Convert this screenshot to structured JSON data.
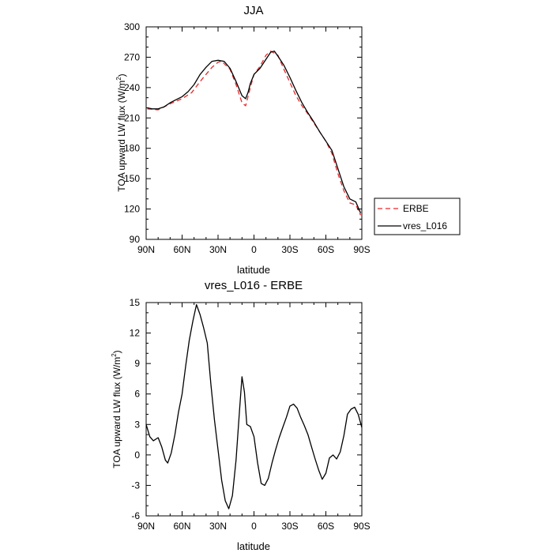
{
  "chart_data": [
    {
      "type": "line",
      "title": "JJA",
      "xlabel": "latitude",
      "ylabel_main": "TOA upward LW flux (W/m",
      "ylabel_sup": "2",
      "ylabel_tail": ")",
      "xlim": [
        90,
        -90
      ],
      "ylim": [
        90,
        300
      ],
      "x_ticks": [
        {
          "value": 90,
          "label": "90N"
        },
        {
          "value": 60,
          "label": "60N"
        },
        {
          "value": 30,
          "label": "30N"
        },
        {
          "value": 0,
          "label": "0"
        },
        {
          "value": -30,
          "label": "30S"
        },
        {
          "value": -60,
          "label": "60S"
        },
        {
          "value": -90,
          "label": "90S"
        }
      ],
      "y_ticks": [
        90,
        120,
        150,
        180,
        210,
        240,
        270,
        300
      ],
      "legend_position": "right",
      "series": [
        {
          "name": "ERBE",
          "color": "#e8282b",
          "dashed": true,
          "x": [
            89,
            80,
            70,
            60,
            52,
            45,
            40,
            35,
            30,
            27,
            20,
            15,
            10,
            7,
            3,
            0,
            -5,
            -10,
            -14,
            -20,
            -25,
            -30,
            -35,
            -40,
            -45,
            -50,
            -55,
            -60,
            -65,
            -70,
            -75,
            -80,
            -85,
            -89
          ],
          "y": [
            219,
            218,
            224,
            229,
            235,
            246,
            253,
            260,
            265,
            266,
            258,
            243,
            225,
            222,
            240,
            253,
            261,
            272,
            276,
            272,
            258,
            245,
            232,
            222,
            214,
            205,
            196,
            187,
            175,
            155,
            138,
            126,
            124,
            114
          ]
        },
        {
          "name": "vres_L016",
          "color": "#000000",
          "dashed": false,
          "x": [
            89,
            85,
            80,
            75,
            70,
            65,
            60,
            55,
            50,
            45,
            40,
            35,
            30,
            25,
            20,
            15,
            10,
            7,
            5,
            3,
            0,
            -5,
            -10,
            -14,
            -17,
            -20,
            -25,
            -30,
            -35,
            -40,
            -45,
            -50,
            -55,
            -60,
            -65,
            -70,
            -75,
            -80,
            -85,
            -89
          ],
          "y": [
            220,
            219,
            219,
            221,
            225,
            228,
            231,
            236,
            243,
            253,
            260,
            266,
            267,
            266,
            259,
            246,
            232,
            229,
            235,
            244,
            253,
            259,
            268,
            275,
            276,
            271,
            262,
            250,
            237,
            225,
            215,
            206,
            196,
            187,
            178,
            160,
            142,
            130,
            127,
            116
          ]
        }
      ]
    },
    {
      "type": "line",
      "title": "vres_L016 - ERBE",
      "xlabel": "latitude",
      "ylabel_main": "TOA upward LW flux (W/m",
      "ylabel_sup": "2",
      "ylabel_tail": ")",
      "xlim": [
        90,
        -90
      ],
      "ylim": [
        -6,
        15
      ],
      "x_ticks": [
        {
          "value": 90,
          "label": "90N"
        },
        {
          "value": 60,
          "label": "60N"
        },
        {
          "value": 30,
          "label": "30N"
        },
        {
          "value": 0,
          "label": "0"
        },
        {
          "value": -30,
          "label": "30S"
        },
        {
          "value": -60,
          "label": "60S"
        },
        {
          "value": -90,
          "label": "90S"
        }
      ],
      "y_ticks": [
        -6,
        -3,
        0,
        3,
        6,
        9,
        12,
        15
      ],
      "series": [
        {
          "color": "#000000",
          "dashed": false,
          "x": [
            90,
            87,
            84,
            80,
            77,
            74,
            72,
            69,
            66,
            63,
            60,
            57,
            54,
            51,
            48,
            45,
            42,
            39,
            36,
            33,
            30,
            27,
            24,
            21,
            18,
            15,
            12,
            10,
            8,
            6,
            3,
            0,
            -3,
            -6,
            -9,
            -12,
            -15,
            -18,
            -21,
            -24,
            -27,
            -30,
            -33,
            -36,
            -39,
            -42,
            -45,
            -48,
            -51,
            -54,
            -57,
            -60,
            -63,
            -66,
            -69,
            -72,
            -75,
            -78,
            -81,
            -84,
            -87,
            -90
          ],
          "y": [
            3.0,
            1.8,
            1.4,
            1.7,
            0.8,
            -0.5,
            -0.8,
            0.2,
            2.0,
            4.2,
            6.0,
            8.8,
            11.3,
            13.2,
            14.8,
            13.8,
            12.5,
            11.0,
            7.0,
            3.5,
            0.5,
            -2.5,
            -4.5,
            -5.3,
            -4.0,
            -0.5,
            4.5,
            7.7,
            6.2,
            3.0,
            2.8,
            1.8,
            -0.8,
            -2.8,
            -3.0,
            -2.3,
            -0.8,
            0.5,
            1.7,
            2.7,
            3.7,
            4.8,
            5.0,
            4.6,
            3.7,
            2.9,
            2.0,
            0.8,
            -0.4,
            -1.5,
            -2.4,
            -1.8,
            -0.3,
            0.0,
            -0.4,
            0.3,
            1.9,
            4.0,
            4.5,
            4.7,
            4.0,
            2.7
          ]
        }
      ]
    }
  ]
}
